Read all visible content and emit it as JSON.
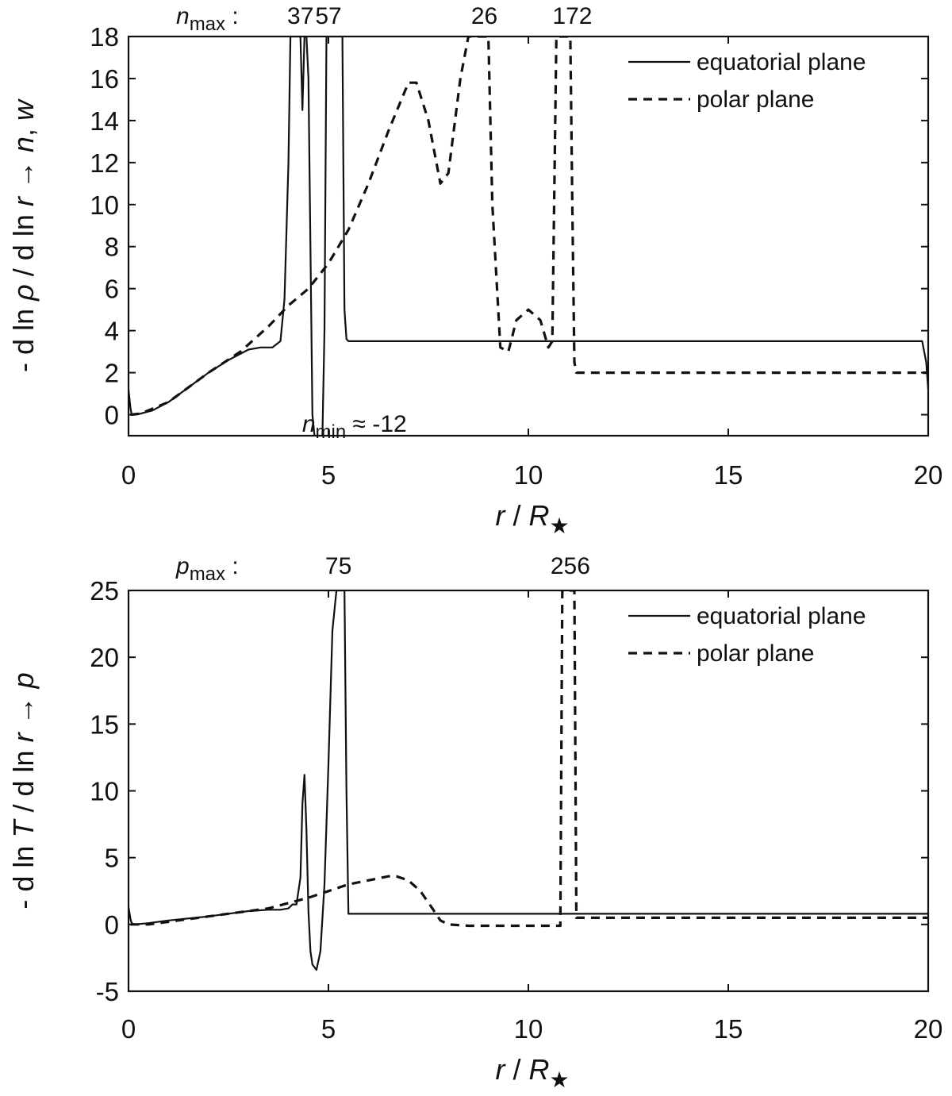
{
  "chart_data": [
    {
      "type": "line",
      "xlabel_var": "r",
      "xlabel_sep": " / ",
      "xlabel_unit": "R",
      "xlabel_sub": "★",
      "ylabel": "- d ln ρ / d ln r → n, w",
      "xlim": [
        0,
        20
      ],
      "ylim": [
        -1,
        18
      ],
      "x_ticks": [
        0,
        5,
        10,
        15,
        20
      ],
      "y_ticks": [
        0,
        2,
        4,
        6,
        8,
        10,
        12,
        14,
        16,
        18
      ],
      "legend_position": "top-right",
      "grid": false,
      "annotation_max_var": "n",
      "annotation_max_sub": "max",
      "annotation_colon": ":",
      "annotation_max_values": [
        {
          "x": 4.3,
          "label": "37"
        },
        {
          "x": 5.0,
          "label": "57"
        },
        {
          "x": 8.9,
          "label": "26"
        },
        {
          "x": 11.1,
          "label": "172"
        }
      ],
      "annotation_min_var": "n",
      "annotation_min_sub": "min",
      "annotation_min_value": "≈ -12",
      "series": [
        {
          "name": "equatorial plane",
          "style": "solid",
          "x": [
            0,
            0.05,
            0.08,
            0.15,
            0.3,
            0.6,
            1.0,
            1.5,
            2.0,
            2.5,
            3.0,
            3.3,
            3.6,
            3.8,
            3.9,
            4.0,
            4.05,
            4.1,
            4.2,
            4.3,
            4.35,
            4.4,
            4.45,
            4.5,
            4.55,
            4.6,
            4.65,
            4.7,
            4.75,
            4.8,
            4.85,
            4.9,
            4.95,
            5.0,
            5.05,
            5.1,
            5.15,
            5.2,
            5.3,
            5.35,
            5.4,
            5.45,
            5.5,
            6.0,
            8.0,
            10.0,
            12.0,
            15.0,
            18.0,
            19.7,
            19.85,
            19.95,
            20.0
          ],
          "y": [
            1.2,
            0.3,
            0.0,
            0.0,
            0.05,
            0.2,
            0.6,
            1.3,
            2.0,
            2.6,
            3.1,
            3.2,
            3.2,
            3.5,
            5.5,
            12.0,
            18.0,
            18.0,
            18.0,
            18.0,
            14.5,
            18.0,
            18.0,
            16.0,
            8.0,
            0.0,
            -1.0,
            -1.0,
            -1.0,
            -1.0,
            -1.0,
            4.0,
            18.0,
            18.0,
            18.0,
            18.0,
            18.0,
            18.0,
            18.0,
            18.0,
            5.0,
            3.6,
            3.5,
            3.5,
            3.5,
            3.5,
            3.5,
            3.5,
            3.5,
            3.5,
            3.5,
            2.5,
            1.2
          ]
        },
        {
          "name": "polar plane",
          "style": "dashed",
          "x": [
            0.05,
            0.3,
            1.0,
            2.0,
            2.8,
            3.5,
            4.0,
            4.5,
            5.0,
            5.5,
            6.0,
            6.5,
            7.0,
            7.2,
            7.5,
            7.8,
            8.0,
            8.3,
            8.5,
            8.7,
            8.9,
            9.0,
            9.1,
            9.3,
            9.5,
            9.7,
            10.0,
            10.3,
            10.5,
            10.6,
            10.7,
            10.8,
            10.9,
            11.0,
            11.05,
            11.1,
            11.15,
            11.2,
            11.3,
            12.0,
            15.0,
            18.0,
            20.0
          ],
          "y": [
            0.0,
            0.05,
            0.6,
            2.0,
            3.0,
            4.2,
            5.2,
            6.0,
            7.2,
            8.8,
            11.0,
            13.5,
            15.8,
            15.8,
            14.0,
            11.0,
            11.5,
            16.0,
            18.0,
            18.0,
            18.0,
            18.0,
            10.0,
            3.2,
            3.0,
            4.5,
            5.0,
            4.5,
            3.2,
            3.5,
            18.0,
            18.0,
            18.0,
            18.0,
            18.0,
            10.0,
            2.5,
            2.0,
            2.0,
            2.0,
            2.0,
            2.0,
            2.0
          ]
        }
      ]
    },
    {
      "type": "line",
      "xlabel_var": "r",
      "xlabel_sep": " / ",
      "xlabel_unit": "R",
      "xlabel_sub": "★",
      "ylabel": "- d ln T / d ln r → p",
      "xlim": [
        0,
        20
      ],
      "ylim": [
        -5,
        25
      ],
      "x_ticks": [
        0,
        5,
        10,
        15,
        20
      ],
      "y_ticks": [
        -5,
        0,
        5,
        10,
        15,
        20,
        25
      ],
      "legend_position": "top-right",
      "grid": false,
      "annotation_max_var": "p",
      "annotation_max_sub": "max",
      "annotation_colon": ":",
      "annotation_max_values": [
        {
          "x": 5.25,
          "label": "75"
        },
        {
          "x": 11.05,
          "label": "256"
        }
      ],
      "series": [
        {
          "name": "equatorial plane",
          "style": "solid",
          "x": [
            0,
            0.05,
            0.08,
            0.15,
            0.5,
            1.0,
            2.0,
            3.0,
            3.5,
            3.8,
            4.0,
            4.1,
            4.2,
            4.3,
            4.35,
            4.4,
            4.45,
            4.5,
            4.55,
            4.6,
            4.7,
            4.8,
            4.9,
            5.0,
            5.1,
            5.2,
            5.25,
            5.3,
            5.35,
            5.4,
            5.45,
            5.5,
            6.0,
            8.0,
            10.0,
            12.0,
            15.0,
            18.0,
            20.0
          ],
          "y": [
            1.3,
            0.4,
            0.1,
            0.0,
            0.1,
            0.3,
            0.6,
            1.0,
            1.1,
            1.1,
            1.2,
            1.5,
            1.5,
            3.5,
            9.0,
            11.2,
            7.0,
            1.0,
            -2.0,
            -3.0,
            -3.4,
            -2.0,
            3.0,
            12.0,
            22.0,
            25.0,
            25.0,
            25.0,
            25.0,
            25.0,
            10.0,
            0.8,
            0.8,
            0.8,
            0.8,
            0.8,
            0.8,
            0.8,
            0.8
          ]
        },
        {
          "name": "polar plane",
          "style": "dashed",
          "x": [
            0.05,
            0.5,
            1.0,
            2.0,
            3.0,
            3.5,
            4.0,
            4.5,
            5.0,
            5.5,
            6.0,
            6.5,
            6.7,
            7.0,
            7.3,
            7.6,
            7.8,
            8.0,
            8.5,
            9.0,
            10.0,
            10.8,
            10.85,
            10.9,
            11.0,
            11.05,
            11.1,
            11.15,
            11.2,
            12.0,
            15.0,
            18.0,
            20.0
          ],
          "y": [
            0.0,
            0.0,
            0.2,
            0.6,
            1.0,
            1.2,
            1.6,
            2.0,
            2.5,
            3.0,
            3.3,
            3.6,
            3.6,
            3.3,
            2.5,
            1.2,
            0.3,
            0.0,
            -0.1,
            -0.1,
            -0.1,
            -0.1,
            25.0,
            25.0,
            25.0,
            25.0,
            25.0,
            25.0,
            0.5,
            0.5,
            0.5,
            0.5,
            0.5
          ]
        }
      ]
    }
  ]
}
